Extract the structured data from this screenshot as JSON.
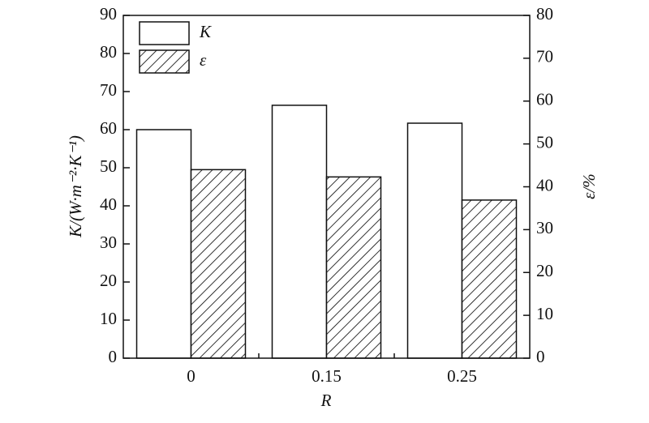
{
  "chart_data": {
    "type": "bar",
    "categories": [
      "0",
      "0.15",
      "0.25"
    ],
    "x_label": "R",
    "y_label": "K/(W·m⁻²·K⁻¹)",
    "y2_label": "ε/%",
    "series": [
      {
        "name": "K",
        "color": "#ffffff",
        "values": [
          60,
          66.4,
          61.7
        ]
      },
      {
        "name": "ε",
        "color": "#000000",
        "hatch": true,
        "axis": "y2",
        "values": [
          44,
          42.3,
          36.9
        ]
      }
    ],
    "ylim": [
      0,
      90
    ],
    "yticks": [
      0,
      10,
      20,
      30,
      40,
      50,
      60,
      70,
      80,
      90
    ],
    "y2lim": [
      0,
      80
    ],
    "y2ticks": [
      0,
      10,
      20,
      30,
      40,
      50,
      60,
      70,
      80
    ],
    "legend": "upper left"
  }
}
